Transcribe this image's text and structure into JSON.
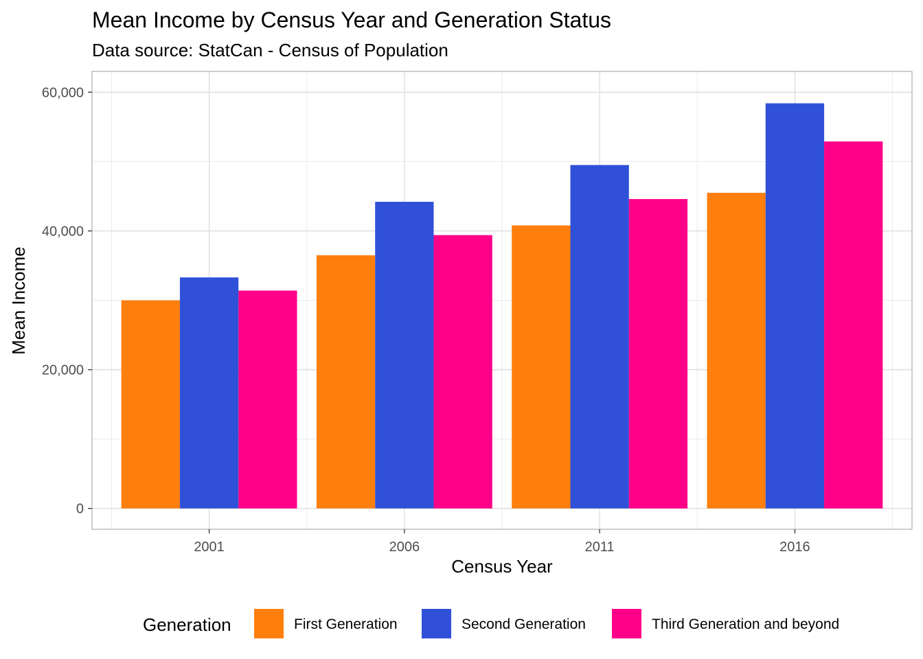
{
  "chart_data": {
    "type": "bar",
    "title": "Mean Income by Census Year and Generation Status",
    "subtitle": "Data source: StatCan - Census of Population",
    "xlabel": "Census Year",
    "ylabel": "Mean Income",
    "categories": [
      "2001",
      "2006",
      "2011",
      "2016"
    ],
    "series": [
      {
        "name": "First Generation",
        "color": "#ff7f0e",
        "values": [
          30000,
          36500,
          40800,
          45500
        ]
      },
      {
        "name": "Second Generation",
        "color": "#3050d8",
        "values": [
          33300,
          44200,
          49500,
          58400
        ]
      },
      {
        "name": "Third Generation and beyond",
        "color": "#ff0088",
        "values": [
          31400,
          39400,
          44600,
          52900
        ]
      }
    ],
    "ylim": [
      -3000,
      63000
    ],
    "yticks": [
      0,
      20000,
      40000,
      60000
    ],
    "ytick_labels": [
      "0",
      "20,000",
      "40,000",
      "60,000"
    ],
    "grid": true,
    "legend": {
      "title": "Generation",
      "position": "bottom"
    }
  }
}
